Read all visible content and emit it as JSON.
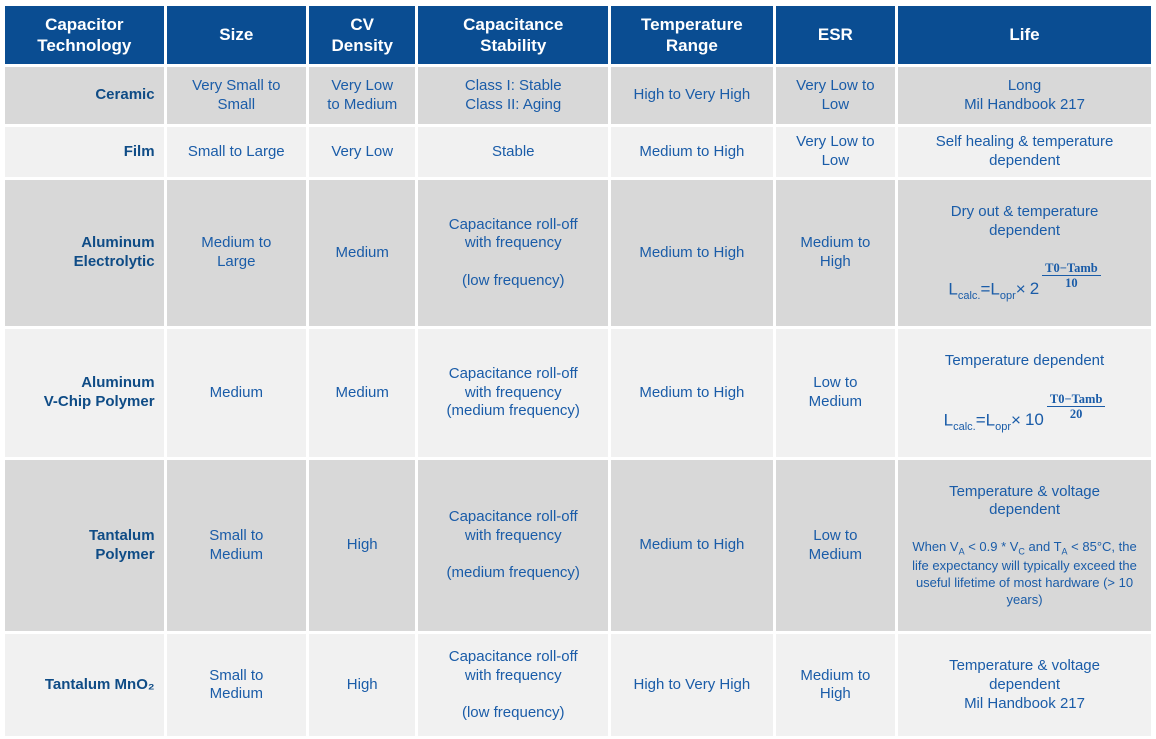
{
  "colors": {
    "header_bg": "#0A4D92",
    "header_text": "#FFFFFF",
    "row_dark_bg": "#D8D8D8",
    "row_light_bg": "#F1F1F1",
    "cell_text": "#1A5CA8",
    "tech_text": "#0F4C86",
    "background": "#FFFFFF"
  },
  "header": {
    "columns": [
      "Capacitor\nTechnology",
      "Size",
      "CV\nDensity",
      "Capacitance\nStability",
      "Temperature\nRange",
      "ESR",
      "Life"
    ]
  },
  "rows": [
    {
      "tech": "Ceramic",
      "size": "Very Small to\nSmall",
      "cv_density": "Very Low\nto Medium",
      "stability": "Class I: Stable\nClass II: Aging",
      "temp_range": "High to Very High",
      "esr": "Very Low to\nLow",
      "life": "Long\nMil Handbook 217"
    },
    {
      "tech": "Film",
      "size": "Small to Large",
      "cv_density": "Very Low",
      "stability": "Stable",
      "temp_range": "Medium to High",
      "esr": "Very Low to\nLow",
      "life": "Self healing & temperature\ndependent"
    },
    {
      "tech": "Aluminum\nElectrolytic",
      "size": "Medium to\nLarge",
      "cv_density": "Medium",
      "stability": "Capacitance roll-off\nwith frequency\n\n(low frequency)",
      "temp_range": "Medium to High",
      "esr": "Medium to\nHigh",
      "life_text": "Dry out & temperature\ndependent",
      "formula": {
        "l1": "L",
        "s1": "calc.",
        "l2": "=L",
        "s2": "opr",
        "times": "×",
        "radix": "2",
        "num": "T0−Tamb",
        "den": "10"
      }
    },
    {
      "tech": "Aluminum\nV-Chip Polymer",
      "size": "Medium",
      "cv_density": "Medium",
      "stability": "Capacitance roll-off\nwith frequency\n(medium frequency)",
      "temp_range": "Medium to High",
      "esr": "Low to\nMedium",
      "life_text": "Temperature dependent",
      "formula": {
        "l1": "L",
        "s1": "calc.",
        "l2": "=L",
        "s2": "opr",
        "times": "×",
        "radix": "10",
        "num": "T0−Tamb",
        "den": "20"
      }
    },
    {
      "tech": "Tantalum\nPolymer",
      "size": "Small to\nMedium",
      "cv_density": "High",
      "stability": "Capacitance roll-off\nwith frequency\n\n(medium frequency)",
      "temp_range": "Medium to High",
      "esr": "Low to\nMedium",
      "life_text": "Temperature & voltage\ndependent",
      "note": {
        "p1": "When V",
        "s1": "A",
        "p2": " < 0.9 * V",
        "s2": "C",
        "p3": " and T",
        "s3": "A",
        "p4": " < 85°C, the life expectancy will typically exceed the useful lifetime of most hardware (> 10 years)"
      }
    },
    {
      "tech": "Tantalum MnO₂",
      "size": "Small to\nMedium",
      "cv_density": "High",
      "stability": "Capacitance roll-off\nwith frequency\n\n(low frequency)",
      "temp_range": "High to Very High",
      "esr": "Medium to\nHigh",
      "life": "Temperature & voltage\ndependent\nMil Handbook 217"
    }
  ]
}
